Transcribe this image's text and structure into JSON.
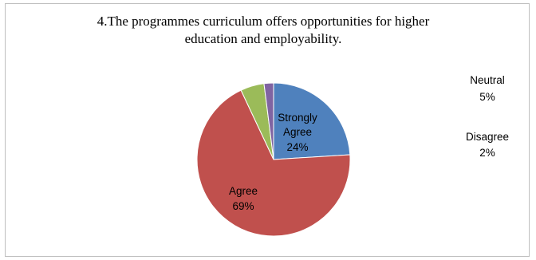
{
  "chart_data": {
    "type": "pie",
    "title_lines": [
      "4.The programmes curriculum offers opportunities for higher",
      "education and employability."
    ],
    "slices": [
      {
        "name": "Strongly Agree",
        "label_lines": [
          "Strongly",
          "Agree"
        ],
        "percent_label": "24%",
        "value": 24,
        "color": "#4f81bd"
      },
      {
        "name": "Agree",
        "label_lines": [
          "Agree"
        ],
        "percent_label": "69%",
        "value": 69,
        "color": "#c0504d"
      },
      {
        "name": "Neutral",
        "label_lines": [
          "Neutral"
        ],
        "percent_label": "5%",
        "value": 5,
        "color": "#9bbb59"
      },
      {
        "name": "Disagree",
        "label_lines": [
          "Disagree"
        ],
        "percent_label": "2%",
        "value": 2,
        "color": "#8064a2"
      }
    ],
    "start_angle_deg": 0,
    "direction": "clockwise"
  }
}
